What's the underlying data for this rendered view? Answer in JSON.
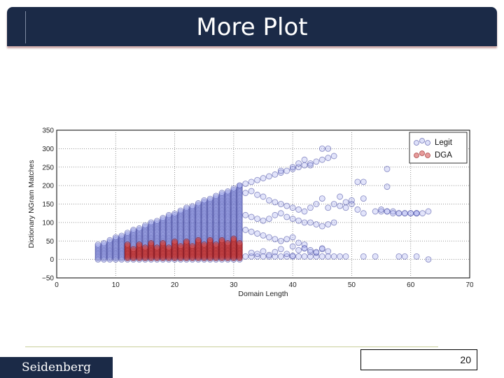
{
  "slide": {
    "title": "More Plot",
    "brand": "Seidenberg",
    "page_number": "20"
  },
  "colors": {
    "title_bar": "#1b2a47",
    "legit_fill": "#9fa7ee",
    "legit_edge": "#3a3f9a",
    "dga_fill": "#d24a4a",
    "dga_edge": "#8a0c0c"
  },
  "chart_data": {
    "type": "scatter",
    "title": "",
    "xlabel": "Domain Length",
    "ylabel": "Dictionary NGram Matches",
    "xlim": [
      0,
      70
    ],
    "ylim": [
      -50,
      350
    ],
    "xticks": [
      "0",
      "10",
      "20",
      "30",
      "40",
      "50",
      "60",
      "70"
    ],
    "yticks": [
      "350",
      "300",
      "250",
      "200",
      "150",
      "100",
      "50",
      "0",
      "−50"
    ],
    "grid": true,
    "legend_position": "top-right",
    "series": [
      {
        "name": "Legit",
        "column_bands": [
          {
            "x_start": 7,
            "x_end": 31,
            "y_min": 0,
            "y_max_start": 40,
            "y_max_end": 200
          }
        ],
        "x": [
          31,
          32,
          33,
          34,
          35,
          36,
          37,
          38,
          39,
          40,
          41,
          42,
          43,
          44,
          45,
          46,
          47,
          48,
          49,
          50,
          51,
          52,
          54,
          55,
          56,
          57,
          58,
          59,
          60,
          61,
          62,
          32,
          33,
          34,
          35,
          36,
          37,
          38,
          39,
          40,
          41,
          42,
          43,
          44,
          45,
          46,
          47,
          48,
          49,
          50,
          51,
          52,
          55,
          56,
          57,
          58,
          59,
          60,
          61,
          63,
          32,
          33,
          34,
          35,
          36,
          37,
          38,
          39,
          40,
          41,
          42,
          43,
          44,
          45,
          46,
          47,
          32,
          33,
          34,
          35,
          36,
          37,
          38,
          39,
          40,
          41,
          42,
          32,
          33,
          34,
          35,
          36,
          37,
          38,
          39,
          40,
          41,
          42,
          43,
          44,
          45,
          46,
          47,
          48,
          49,
          52,
          54,
          58,
          59,
          61,
          63,
          33,
          34,
          35,
          36,
          37,
          38,
          39,
          40,
          41,
          42,
          43,
          44,
          45,
          46,
          38,
          40,
          41,
          42,
          43,
          45,
          46,
          52,
          56,
          56,
          61,
          40,
          42,
          43,
          44,
          45
        ],
        "y": [
          200,
          205,
          210,
          215,
          220,
          225,
          230,
          235,
          240,
          245,
          250,
          255,
          260,
          265,
          270,
          275,
          280,
          170,
          155,
          160,
          210,
          165,
          130,
          130,
          130,
          130,
          125,
          125,
          125,
          125,
          125,
          180,
          185,
          175,
          170,
          160,
          155,
          150,
          145,
          140,
          135,
          130,
          140,
          150,
          165,
          140,
          150,
          145,
          140,
          150,
          135,
          125,
          135,
          130,
          125,
          125,
          125,
          125,
          125,
          130,
          120,
          115,
          110,
          105,
          110,
          120,
          125,
          115,
          110,
          105,
          100,
          100,
          95,
          90,
          95,
          100,
          80,
          75,
          70,
          65,
          60,
          55,
          50,
          55,
          60,
          45,
          40,
          8,
          8,
          8,
          8,
          8,
          8,
          8,
          8,
          8,
          8,
          8,
          8,
          8,
          8,
          8,
          8,
          8,
          8,
          8,
          8,
          8,
          8,
          8,
          0,
          18,
          15,
          22,
          12,
          20,
          28,
          15,
          10,
          25,
          30,
          20,
          18,
          28,
          22,
          240,
          250,
          260,
          270,
          255,
          300,
          300,
          210,
          245,
          197,
          125,
          35,
          30,
          25,
          20,
          30
        ]
      },
      {
        "name": "DGA",
        "column_bands": [
          {
            "x_start": 12,
            "x_end": 31,
            "y_min": 0,
            "y_max_start": 42,
            "y_max_end": 58
          }
        ],
        "x": [],
        "y": []
      }
    ]
  }
}
